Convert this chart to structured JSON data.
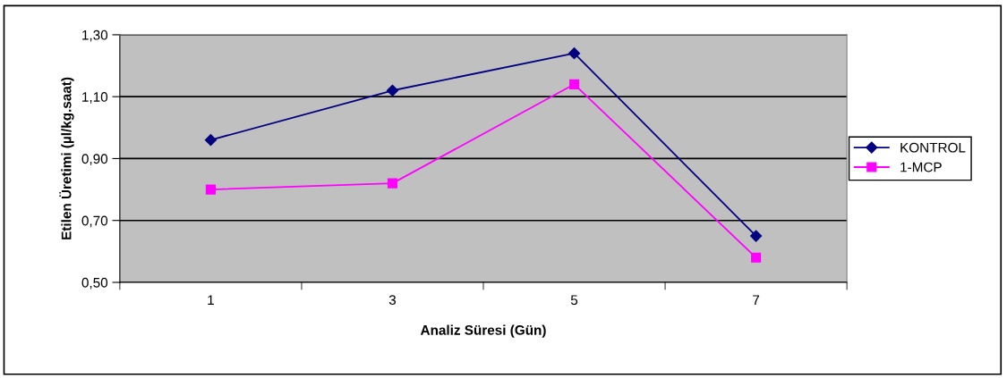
{
  "chart_data": {
    "type": "line",
    "xlabel": "Analiz Süresi (Gün)",
    "ylabel": "Etilen Üretimi (µl/kg.saat)",
    "categories": [
      "1",
      "3",
      "5",
      "7"
    ],
    "series": [
      {
        "name": "KONTROL",
        "color": "#000080",
        "marker": "diamond",
        "values": [
          0.96,
          1.12,
          1.24,
          0.65
        ]
      },
      {
        "name": "1-MCP",
        "color": "#ff00ff",
        "marker": "square",
        "values": [
          0.8,
          0.82,
          1.14,
          0.58
        ]
      }
    ],
    "ylim": [
      0.5,
      1.3
    ],
    "yticks": [
      {
        "value": 0.5,
        "label": "0,50"
      },
      {
        "value": 0.7,
        "label": "0,70"
      },
      {
        "value": 0.9,
        "label": "0,90"
      },
      {
        "value": 1.1,
        "label": "1,10"
      },
      {
        "value": 1.3,
        "label": "1,30"
      }
    ],
    "grid": "y",
    "legend": "right",
    "line_style": "solid"
  }
}
